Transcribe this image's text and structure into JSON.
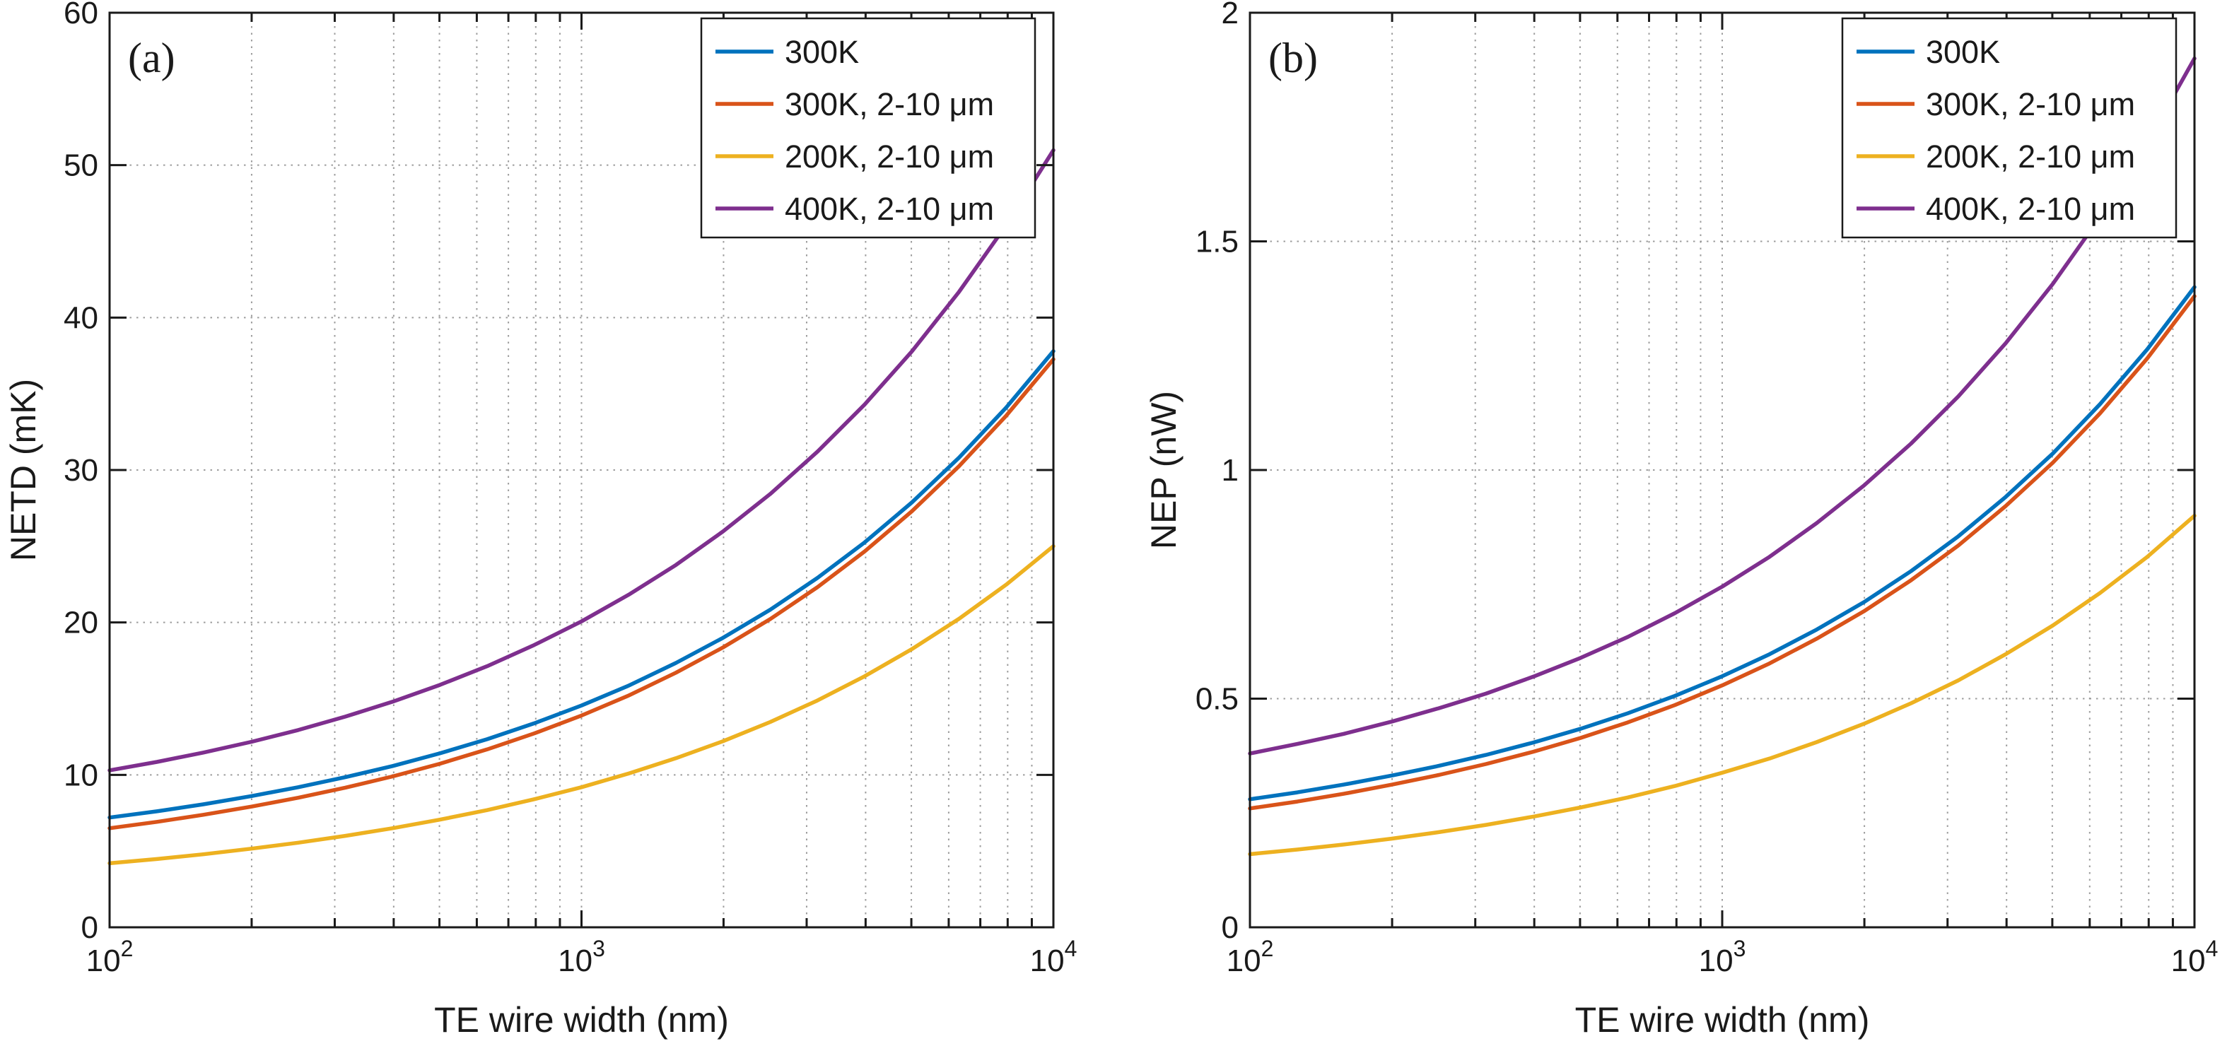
{
  "figure": {
    "title": "",
    "background": "#ffffff",
    "axis_color": "#1a1a1a",
    "grid_color": "#8c8c8c"
  },
  "chart_data": [
    {
      "type": "line",
      "panel_label": "(a)",
      "xlabel": "TE wire width (nm)",
      "ylabel": "NETD (mK)",
      "xscale": "log",
      "xlim": [
        100,
        10000
      ],
      "ylim": [
        0,
        60
      ],
      "xticks": [
        100,
        1000,
        10000
      ],
      "xtick_labels": [
        {
          "base": "10",
          "exp": "2"
        },
        {
          "base": "10",
          "exp": "3"
        },
        {
          "base": "10",
          "exp": "4"
        }
      ],
      "yticks": [
        0,
        10,
        20,
        30,
        40,
        50,
        60
      ],
      "ytick_labels": [
        "0",
        "10",
        "20",
        "30",
        "40",
        "50",
        "60"
      ],
      "grid": "on",
      "minor_grid": "on",
      "legend_position": "northeast-inside",
      "x": [
        100,
        126,
        158,
        200,
        251,
        316,
        398,
        501,
        631,
        794,
        1000,
        1259,
        1585,
        1995,
        2512,
        3162,
        3981,
        5012,
        6310,
        7943,
        10000
      ],
      "series": [
        {
          "name": "300K",
          "color": "#0072BD",
          "values": [
            7.2,
            7.61,
            8.07,
            8.61,
            9.19,
            9.85,
            10.58,
            11.41,
            12.34,
            13.38,
            14.55,
            15.86,
            17.34,
            18.99,
            20.84,
            22.92,
            25.25,
            27.87,
            30.81,
            34.1,
            37.8
          ]
        },
        {
          "name": "300K, 2-10 μm",
          "color": "#D95319",
          "values": [
            6.5,
            6.92,
            7.38,
            7.92,
            8.5,
            9.16,
            9.9,
            10.73,
            11.67,
            12.72,
            13.89,
            15.21,
            16.7,
            18.36,
            20.22,
            22.31,
            24.66,
            27.29,
            30.25,
            33.56,
            37.26
          ]
        },
        {
          "name": "200K, 2-10 μm",
          "color": "#EDB120",
          "values": [
            4.2,
            4.48,
            4.79,
            5.16,
            5.55,
            6.0,
            6.5,
            7.06,
            7.69,
            8.4,
            9.19,
            10.09,
            11.09,
            12.21,
            13.47,
            14.88,
            16.47,
            18.25,
            20.24,
            22.48,
            25.0
          ]
        },
        {
          "name": "400K, 2-10 μm",
          "color": "#7E2F8E",
          "values": [
            10.3,
            10.85,
            11.46,
            12.17,
            12.94,
            13.82,
            14.8,
            15.9,
            17.13,
            18.52,
            20.07,
            21.82,
            23.77,
            25.97,
            28.43,
            31.2,
            34.3,
            37.78,
            41.69,
            46.06,
            50.98
          ]
        }
      ]
    },
    {
      "type": "line",
      "panel_label": "(b)",
      "xlabel": "TE wire width (nm)",
      "ylabel": "NEP (nW)",
      "xscale": "log",
      "xlim": [
        100,
        10000
      ],
      "ylim": [
        0,
        2
      ],
      "xticks": [
        100,
        1000,
        10000
      ],
      "xtick_labels": [
        {
          "base": "10",
          "exp": "2"
        },
        {
          "base": "10",
          "exp": "3"
        },
        {
          "base": "10",
          "exp": "4"
        }
      ],
      "yticks": [
        0,
        0.5,
        1,
        1.5,
        2
      ],
      "ytick_labels": [
        "0",
        "0.5",
        "1",
        "1.5",
        "2"
      ],
      "grid": "on",
      "minor_grid": "on",
      "legend_position": "northeast-inside",
      "x": [
        100,
        126,
        158,
        200,
        251,
        316,
        398,
        501,
        631,
        794,
        1000,
        1259,
        1585,
        1995,
        2512,
        3162,
        3981,
        5012,
        6310,
        7943,
        10000
      ],
      "series": [
        {
          "name": "300K",
          "color": "#0072BD",
          "values": [
            0.28,
            0.295,
            0.312,
            0.332,
            0.353,
            0.377,
            0.404,
            0.434,
            0.468,
            0.506,
            0.549,
            0.597,
            0.651,
            0.711,
            0.779,
            0.855,
            0.941,
            1.036,
            1.144,
            1.264,
            1.4
          ]
        },
        {
          "name": "300K, 2-10 μm",
          "color": "#D95319",
          "values": [
            0.26,
            0.275,
            0.292,
            0.312,
            0.333,
            0.357,
            0.384,
            0.414,
            0.448,
            0.486,
            0.529,
            0.577,
            0.631,
            0.691,
            0.759,
            0.835,
            0.921,
            1.016,
            1.124,
            1.244,
            1.38
          ]
        },
        {
          "name": "200K, 2-10 μm",
          "color": "#EDB120",
          "values": [
            0.16,
            0.17,
            0.181,
            0.194,
            0.208,
            0.224,
            0.242,
            0.262,
            0.284,
            0.309,
            0.338,
            0.369,
            0.405,
            0.445,
            0.49,
            0.54,
            0.597,
            0.66,
            0.731,
            0.81,
            0.9
          ]
        },
        {
          "name": "400K, 2-10 μm",
          "color": "#7E2F8E",
          "values": [
            0.38,
            0.401,
            0.423,
            0.45,
            0.479,
            0.511,
            0.548,
            0.589,
            0.635,
            0.687,
            0.745,
            0.81,
            0.884,
            0.966,
            1.058,
            1.161,
            1.277,
            1.407,
            1.553,
            1.716,
            1.9
          ]
        }
      ]
    }
  ]
}
